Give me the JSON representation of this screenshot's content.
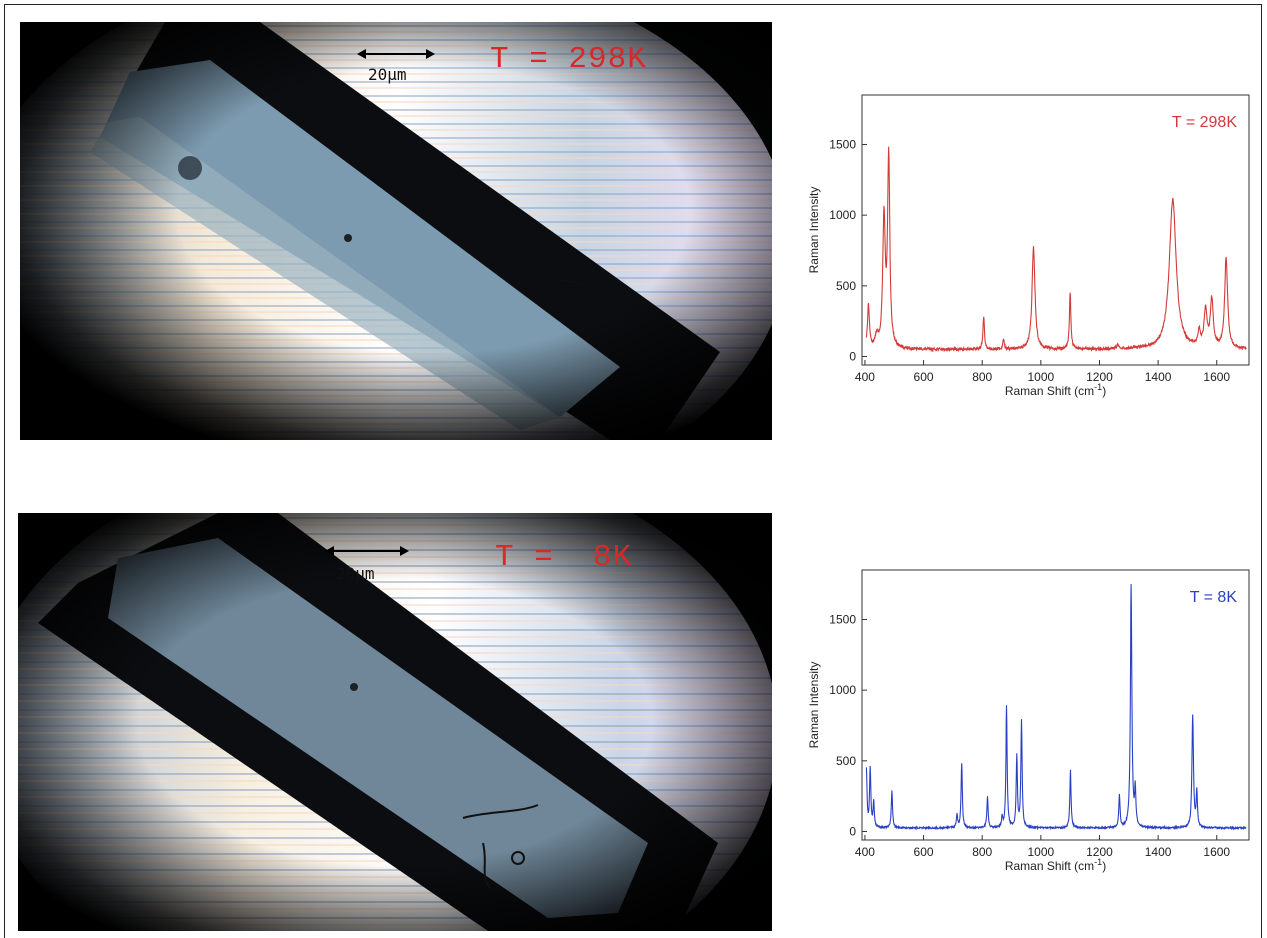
{
  "panels": [
    {
      "photo": {
        "scale_bar_label": "20μm",
        "temperature_label": "T = 298K"
      },
      "chart_data": {
        "type": "line",
        "title": "",
        "annotation": "T = 298K",
        "xlabel": "Raman Shift (cm",
        "xlabel_sup": "-1",
        "xlabel_end": ")",
        "ylabel": "Raman Intensity",
        "xlim": [
          390,
          1710
        ],
        "ylim": [
          -60,
          1850
        ],
        "xticks": [
          400,
          600,
          800,
          1000,
          1200,
          1400,
          1600
        ],
        "yticks": [
          0,
          500,
          1000,
          1500
        ],
        "color": "#d33a3a",
        "baseline": 50,
        "noise": 10,
        "peaks": [
          {
            "x": 412,
            "h": 310,
            "w": 4
          },
          {
            "x": 440,
            "h": 80,
            "w": 6
          },
          {
            "x": 465,
            "h": 910,
            "w": 5
          },
          {
            "x": 481,
            "h": 1340,
            "w": 4.5
          },
          {
            "x": 805,
            "h": 230,
            "w": 3
          },
          {
            "x": 873,
            "h": 70,
            "w": 3
          },
          {
            "x": 975,
            "h": 720,
            "w": 6
          },
          {
            "x": 1100,
            "h": 400,
            "w": 3
          },
          {
            "x": 1262,
            "h": 25,
            "w": 5
          },
          {
            "x": 1450,
            "h": 1060,
            "w": 14
          },
          {
            "x": 1540,
            "h": 110,
            "w": 5
          },
          {
            "x": 1562,
            "h": 260,
            "w": 6
          },
          {
            "x": 1583,
            "h": 340,
            "w": 6
          },
          {
            "x": 1632,
            "h": 640,
            "w": 6
          }
        ]
      }
    },
    {
      "photo": {
        "scale_bar_label": "20μm",
        "temperature_label": "T =  8K"
      },
      "chart_data": {
        "type": "line",
        "title": "",
        "annotation": "T = 8K",
        "xlabel": "Raman Shift (cm",
        "xlabel_sup": "-1",
        "xlabel_end": ")",
        "ylabel": "Raman Intensity",
        "xlim": [
          390,
          1710
        ],
        "ylim": [
          -60,
          1850
        ],
        "xticks": [
          400,
          600,
          800,
          1000,
          1200,
          1400,
          1600
        ],
        "yticks": [
          0,
          500,
          1000,
          1500
        ],
        "color": "#2b3fc6",
        "baseline": 25,
        "noise": 6,
        "peaks": [
          {
            "x": 405,
            "h": 410,
            "w": 2.5
          },
          {
            "x": 418,
            "h": 420,
            "w": 2.5
          },
          {
            "x": 430,
            "h": 180,
            "w": 2.5
          },
          {
            "x": 492,
            "h": 260,
            "w": 2.5
          },
          {
            "x": 714,
            "h": 90,
            "w": 2.5
          },
          {
            "x": 730,
            "h": 460,
            "w": 2.5
          },
          {
            "x": 818,
            "h": 220,
            "w": 2.5
          },
          {
            "x": 868,
            "h": 70,
            "w": 2.5
          },
          {
            "x": 883,
            "h": 860,
            "w": 2.5
          },
          {
            "x": 918,
            "h": 500,
            "w": 2.5
          },
          {
            "x": 934,
            "h": 750,
            "w": 2.5
          },
          {
            "x": 1101,
            "h": 410,
            "w": 2.5
          },
          {
            "x": 1268,
            "h": 230,
            "w": 2.5
          },
          {
            "x": 1308,
            "h": 1720,
            "w": 3
          },
          {
            "x": 1322,
            "h": 260,
            "w": 2.5
          },
          {
            "x": 1518,
            "h": 800,
            "w": 3
          },
          {
            "x": 1532,
            "h": 250,
            "w": 2.5
          }
        ]
      }
    }
  ]
}
